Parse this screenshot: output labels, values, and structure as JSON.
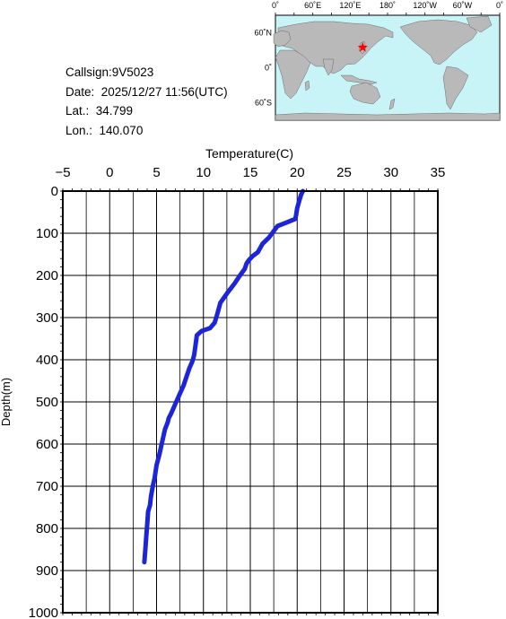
{
  "station": {
    "callsign": "Callsign:9V5023",
    "date": "Date:  2025/12/27 11:56(UTC)",
    "lat": "Lat.:  34.799",
    "lon": "Lon.:  140.070"
  },
  "map": {
    "lon_labels": [
      "0˚",
      "60˚E",
      "120˚E",
      "180˚",
      "120˚W",
      "60˚W",
      "0˚"
    ],
    "lat_labels": [
      "60˚N",
      "0˚",
      "60˚S"
    ],
    "ocean_color": "#c8f4f8",
    "land_color": "#b9b9b9",
    "marker_color": "#ff0000",
    "marker_lat": 34.799,
    "marker_lon": 140.07
  },
  "chart_data": {
    "type": "line",
    "title": "",
    "xlabel": "Temperature(C)",
    "ylabel": "Depth(m)",
    "xlim": [
      -5,
      35
    ],
    "ylim": [
      0,
      1000
    ],
    "y_inverted": true,
    "x_axis_position": "top",
    "xticks": [
      -5,
      0,
      5,
      10,
      15,
      20,
      25,
      30,
      35
    ],
    "yticks": [
      0,
      100,
      200,
      300,
      400,
      500,
      600,
      700,
      800,
      900,
      1000
    ],
    "grid": true,
    "line_color": "#1c25d8",
    "series": [
      {
        "x": [
          20.6,
          20.4,
          20.2,
          20.0,
          19.9,
          19.8,
          18.8,
          17.9,
          17.5,
          17.0,
          16.3,
          15.8,
          15.2,
          14.8,
          14.6,
          14.4,
          13.9,
          13.3,
          12.6,
          11.8,
          11.5,
          11.2,
          10.7,
          9.8,
          9.3,
          9.2,
          9.1,
          9.0,
          8.8,
          8.5,
          8.2,
          7.9,
          7.5,
          7.1,
          6.8,
          6.5,
          6.3,
          6.2,
          5.9,
          5.7,
          5.5,
          5.3,
          5.0,
          4.8,
          4.6,
          4.4,
          4.3,
          4.1,
          4.0,
          3.9,
          3.8,
          3.7
        ],
        "y": [
          0,
          10,
          25,
          40,
          55,
          66,
          75,
          83,
          95,
          110,
          125,
          145,
          155,
          165,
          172,
          185,
          200,
          220,
          240,
          265,
          290,
          312,
          325,
          332,
          342,
          358,
          375,
          390,
          405,
          420,
          440,
          460,
          480,
          500,
          515,
          530,
          538,
          548,
          565,
          585,
          605,
          625,
          650,
          680,
          700,
          725,
          745,
          760,
          790,
          820,
          850,
          880
        ]
      }
    ]
  }
}
